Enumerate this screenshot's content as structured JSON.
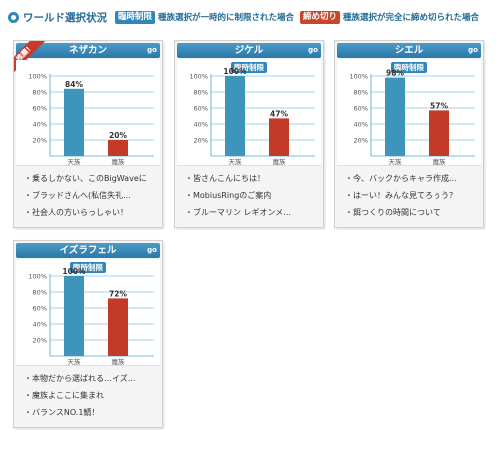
{
  "header": {
    "title": "ワールド選択状況",
    "legend": [
      {
        "badge": "臨時制限",
        "desc": "種族選択が一時的に制限された場合",
        "color": "#2f86b8"
      },
      {
        "badge": "締め切り",
        "desc": "種族選択が完全に締め切られた場合",
        "color": "#c8452f"
      }
    ]
  },
  "go_label": "go",
  "ribbon_label": "推薦!",
  "colors": {
    "tenzoku": "#3e94bb",
    "mazoku": "#c43a28"
  },
  "worlds": [
    {
      "name": "ネザカン",
      "status_badge": "",
      "recommended": true,
      "topics": [
        "乗るしかない、このBigWaveに",
        "ブラッドさんへ(私信失礼...",
        "社会人の方いらっしゃい！"
      ],
      "chart_data": {
        "type": "bar",
        "categories": [
          "天族",
          "魔族"
        ],
        "values": [
          84,
          20
        ],
        "value_labels": [
          "84%",
          "20%"
        ],
        "ylim": [
          0,
          100
        ],
        "yticks": [
          "100%",
          "80%",
          "60%",
          "40%",
          "20%"
        ]
      }
    },
    {
      "name": "ジケル",
      "status_badge": "臨時制限",
      "recommended": false,
      "topics": [
        "皆さんこんにちは！",
        "MobiusRingのご案内",
        "ブルーマリン レギオンメ..."
      ],
      "chart_data": {
        "type": "bar",
        "categories": [
          "天族",
          "魔族"
        ],
        "values": [
          100,
          47
        ],
        "value_labels": [
          "100%",
          "47%"
        ],
        "ylim": [
          0,
          100
        ],
        "yticks": [
          "100%",
          "80%",
          "60%",
          "40%",
          "20%"
        ]
      }
    },
    {
      "name": "シエル",
      "status_badge": "臨時制限",
      "recommended": false,
      "topics": [
        "今、バックからキャラ作成...",
        "はーい！みんな見てろぅう？",
        "餌つくりの時間について"
      ],
      "chart_data": {
        "type": "bar",
        "categories": [
          "天族",
          "魔族"
        ],
        "values": [
          98,
          57
        ],
        "value_labels": [
          "98%",
          "57%"
        ],
        "ylim": [
          0,
          100
        ],
        "yticks": [
          "100%",
          "80%",
          "60%",
          "40%",
          "20%"
        ]
      }
    },
    {
      "name": "イズラフェル",
      "status_badge": "臨時制限",
      "recommended": false,
      "topics": [
        "本物だから選ばれる…イズ...",
        "魔族よここに集まれ",
        "バランスNO.1鯖！"
      ],
      "chart_data": {
        "type": "bar",
        "categories": [
          "天族",
          "魔族"
        ],
        "values": [
          100,
          72
        ],
        "value_labels": [
          "100%",
          "72%"
        ],
        "ylim": [
          0,
          100
        ],
        "yticks": [
          "100%",
          "80%",
          "60%",
          "40%",
          "20%"
        ]
      }
    }
  ]
}
